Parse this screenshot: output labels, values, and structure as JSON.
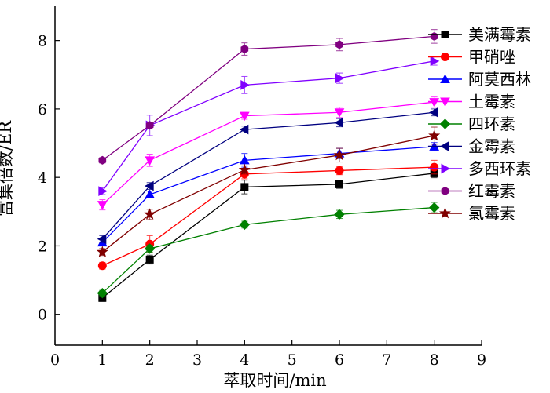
{
  "chart_data": {
    "type": "line",
    "title": "",
    "xlabel": "萃取时间/min",
    "ylabel": "富集倍数/ER",
    "xlim": [
      0,
      9
    ],
    "ylim": [
      -0.9,
      9
    ],
    "xticks": [
      0,
      1,
      2,
      3,
      4,
      5,
      6,
      7,
      8,
      9
    ],
    "yticks": [
      0,
      2,
      4,
      6,
      8
    ],
    "x": [
      1,
      2,
      4,
      6,
      8
    ],
    "grid": false,
    "legend_position": "top-right",
    "series": [
      {
        "name": "美满霉素",
        "color": "#000000",
        "marker": "square",
        "values": [
          0.48,
          1.6,
          3.72,
          3.8,
          4.12
        ],
        "errors": [
          0.1,
          0.13,
          0.2,
          0.12,
          0.13
        ]
      },
      {
        "name": "甲硝唑",
        "color": "#ff0000",
        "marker": "circle",
        "values": [
          1.42,
          2.05,
          4.1,
          4.2,
          4.3
        ],
        "errors": [
          0.1,
          0.25,
          0.14,
          0.12,
          0.2
        ]
      },
      {
        "name": "阿莫西林",
        "color": "#0000ff",
        "marker": "triangle-up",
        "values": [
          2.1,
          3.5,
          4.5,
          4.7,
          4.9
        ],
        "errors": [
          0.1,
          0.1,
          0.2,
          0.15,
          0.12
        ]
      },
      {
        "name": "土霉素",
        "color": "#ff00ff",
        "marker": "triangle-down",
        "values": [
          3.2,
          4.5,
          5.8,
          5.9,
          6.2
        ],
        "errors": [
          0.15,
          0.18,
          0.1,
          0.15,
          0.15
        ]
      },
      {
        "name": "四环素",
        "color": "#008000",
        "marker": "diamond",
        "values": [
          0.62,
          1.92,
          2.62,
          2.92,
          3.12
        ],
        "errors": [
          0.08,
          0.1,
          0.1,
          0.12,
          0.15
        ]
      },
      {
        "name": "金霉素",
        "color": "#000080",
        "marker": "triangle-left",
        "values": [
          2.2,
          3.75,
          5.4,
          5.6,
          5.9
        ],
        "errors": [
          0.1,
          0.1,
          0.1,
          0.12,
          0.1
        ]
      },
      {
        "name": "多西环素",
        "color": "#8000ff",
        "marker": "triangle-right",
        "values": [
          3.6,
          5.52,
          6.7,
          6.9,
          7.4
        ],
        "errors": [
          0.1,
          0.3,
          0.25,
          0.15,
          0.12
        ]
      },
      {
        "name": "红霉素",
        "color": "#800080",
        "marker": "hexagon",
        "values": [
          4.5,
          5.52,
          7.75,
          7.88,
          8.12
        ],
        "errors": [
          0.08,
          0.1,
          0.18,
          0.18,
          0.2
        ]
      },
      {
        "name": "氯霉素",
        "color": "#800000",
        "marker": "star",
        "values": [
          1.82,
          2.92,
          4.22,
          4.65,
          5.22
        ],
        "errors": [
          0.1,
          0.15,
          0.12,
          0.2,
          0.25
        ]
      }
    ]
  }
}
